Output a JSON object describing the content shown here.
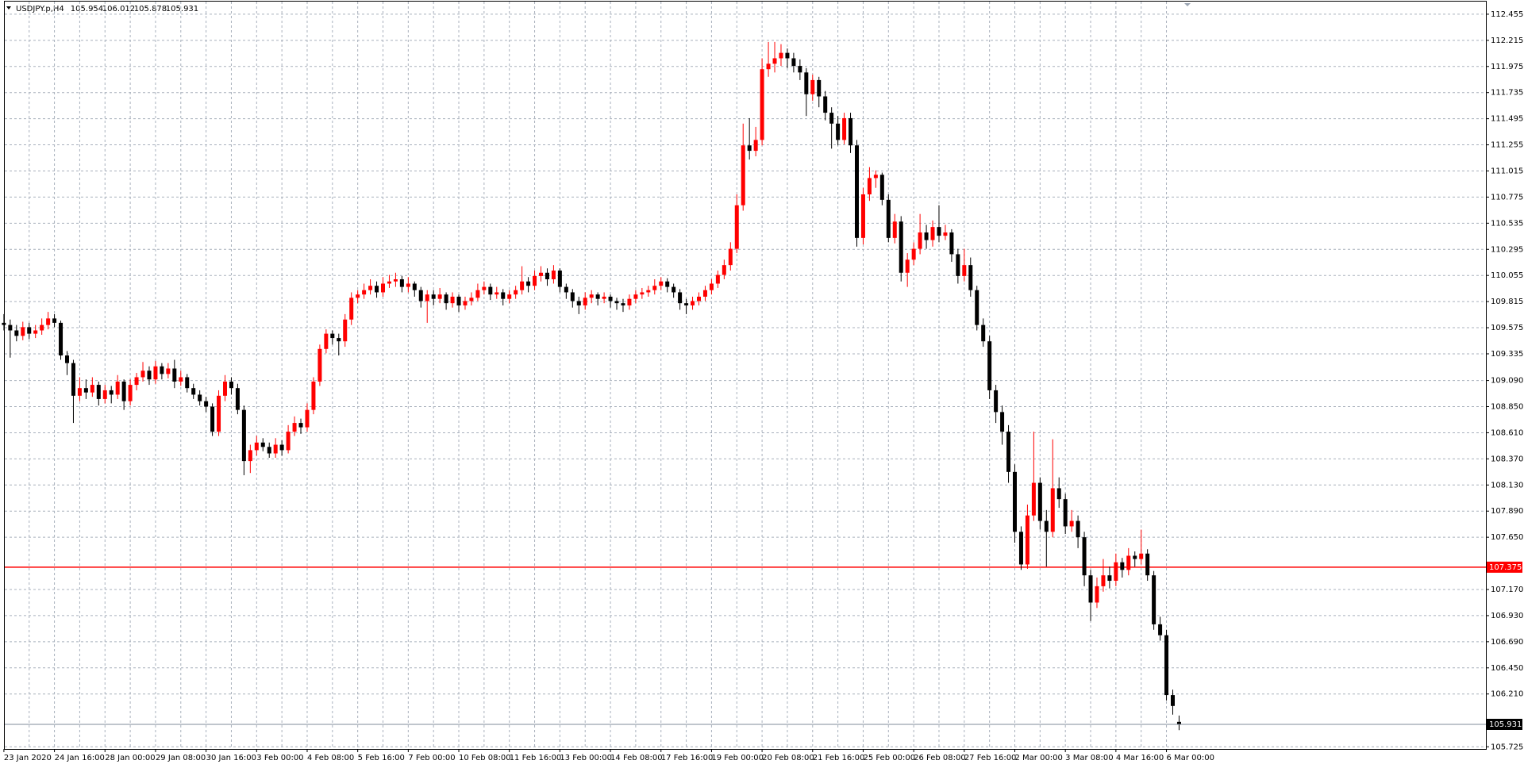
{
  "chart_data": {
    "type": "candlestick",
    "title": "USDJPY.p,H4",
    "up_color": "#ff0000",
    "down_color": "#000000",
    "grid": true,
    "ylim": [
      105.705,
      112.571
    ],
    "yticks": [
      112.455,
      112.215,
      111.975,
      111.735,
      111.495,
      111.255,
      111.015,
      110.775,
      110.535,
      110.295,
      110.055,
      109.815,
      109.575,
      109.335,
      {
        "value": 109.09,
        "label": "109.090"
      },
      {
        "value": 108.85,
        "label": "108.850"
      },
      {
        "value": 108.61,
        "label": "108.610"
      },
      {
        "value": 108.37,
        "label": "108.370"
      },
      {
        "value": 108.13,
        "label": "108.130"
      },
      {
        "value": 107.89,
        "label": "107.890"
      },
      {
        "value": 107.65,
        "label": "107.650"
      },
      {
        "value": 107.17,
        "label": "107.170"
      },
      {
        "value": 106.93,
        "label": "106.930"
      },
      {
        "value": 106.69,
        "label": "106.690"
      },
      {
        "value": 106.45,
        "label": "106.450"
      },
      {
        "value": 106.21,
        "label": "106.210"
      },
      105.725
    ],
    "hlines": [
      {
        "value": 107.375,
        "color": "#ff0000"
      }
    ],
    "categories": [
      "23 Jan 2020",
      null,
      null,
      null,
      null,
      null,
      null,
      null,
      "24 Jan 16:00",
      null,
      null,
      null,
      null,
      null,
      null,
      null,
      "28 Jan 00:00",
      null,
      null,
      null,
      null,
      null,
      null,
      null,
      "29 Jan 08:00",
      null,
      null,
      null,
      null,
      null,
      null,
      null,
      "30 Jan 16:00",
      null,
      null,
      null,
      null,
      null,
      null,
      null,
      "3 Feb 00:00",
      null,
      null,
      null,
      null,
      null,
      null,
      null,
      "4 Feb 08:00",
      null,
      null,
      null,
      null,
      null,
      null,
      null,
      "5 Feb 16:00",
      null,
      null,
      null,
      null,
      null,
      null,
      null,
      "7 Feb 00:00",
      null,
      null,
      null,
      null,
      null,
      null,
      null,
      "10 Feb 08:00",
      null,
      null,
      null,
      null,
      null,
      null,
      null,
      "11 Feb 16:00",
      null,
      null,
      null,
      null,
      null,
      null,
      null,
      "13 Feb 00:00",
      null,
      null,
      null,
      null,
      null,
      null,
      null,
      "14 Feb 08:00",
      null,
      null,
      null,
      null,
      null,
      null,
      null,
      "17 Feb 16:00",
      null,
      null,
      null,
      null,
      null,
      null,
      null,
      "19 Feb 00:00",
      null,
      null,
      null,
      null,
      null,
      null,
      null,
      "20 Feb 08:00",
      null,
      null,
      null,
      null,
      null,
      null,
      null,
      "21 Feb 16:00",
      null,
      null,
      null,
      null,
      null,
      null,
      null,
      "25 Feb 00:00",
      null,
      null,
      null,
      null,
      null,
      null,
      null,
      "26 Feb 08:00",
      null,
      null,
      null,
      null,
      null,
      null,
      null,
      "27 Feb 16:00",
      null,
      null,
      null,
      null,
      null,
      null,
      null,
      "2 Mar 00:00",
      null,
      null,
      null,
      null,
      null,
      null,
      null,
      "3 Mar 08:00",
      null,
      null,
      null,
      null,
      null,
      null,
      null,
      "4 Mar 16:00",
      null,
      null,
      null,
      null,
      null,
      null,
      null,
      "6 Mar 00:00",
      null,
      null
    ],
    "ohlc": [
      [
        109.62,
        109.7,
        109.55,
        109.6
      ],
      [
        109.6,
        109.65,
        109.3,
        109.55
      ],
      [
        109.55,
        109.6,
        109.45,
        109.5
      ],
      [
        109.5,
        109.63,
        109.46,
        109.58
      ],
      [
        109.58,
        109.62,
        109.47,
        109.52
      ],
      [
        109.52,
        109.6,
        109.48,
        109.55
      ],
      [
        109.55,
        109.66,
        109.51,
        109.6
      ],
      [
        109.6,
        109.72,
        109.56,
        109.66
      ],
      [
        109.66,
        109.7,
        109.58,
        109.62
      ],
      [
        109.62,
        109.64,
        109.28,
        109.32
      ],
      [
        109.32,
        109.36,
        109.14,
        109.25
      ],
      [
        109.25,
        109.28,
        108.7,
        108.95
      ],
      [
        108.95,
        109.12,
        108.9,
        109.02
      ],
      [
        109.02,
        109.1,
        108.92,
        108.98
      ],
      [
        108.98,
        109.12,
        108.94,
        109.05
      ],
      [
        109.05,
        109.08,
        108.86,
        108.92
      ],
      [
        108.92,
        109.05,
        108.88,
        109.0
      ],
      [
        109.0,
        109.04,
        108.88,
        108.96
      ],
      [
        108.96,
        109.14,
        108.92,
        109.08
      ],
      [
        109.08,
        109.1,
        108.82,
        108.9
      ],
      [
        108.9,
        109.1,
        108.86,
        109.05
      ],
      [
        109.05,
        109.16,
        109.0,
        109.12
      ],
      [
        109.12,
        109.26,
        109.08,
        109.18
      ],
      [
        109.18,
        109.22,
        109.05,
        109.1
      ],
      [
        109.1,
        109.27,
        109.06,
        109.22
      ],
      [
        109.22,
        109.25,
        109.1,
        109.15
      ],
      [
        109.15,
        109.25,
        109.11,
        109.2
      ],
      [
        109.2,
        109.28,
        109.02,
        109.08
      ],
      [
        109.08,
        109.18,
        109.04,
        109.12
      ],
      [
        109.12,
        109.15,
        108.98,
        109.02
      ],
      [
        109.02,
        109.06,
        108.92,
        108.96
      ],
      [
        108.96,
        109.0,
        108.86,
        108.9
      ],
      [
        108.9,
        108.94,
        108.8,
        108.85
      ],
      [
        108.85,
        108.88,
        108.58,
        108.62
      ],
      [
        108.62,
        109.0,
        108.58,
        108.95
      ],
      [
        108.95,
        109.14,
        108.9,
        109.08
      ],
      [
        109.08,
        109.12,
        108.96,
        109.02
      ],
      [
        109.02,
        109.06,
        108.78,
        108.82
      ],
      [
        108.82,
        108.86,
        108.22,
        108.35
      ],
      [
        108.35,
        108.5,
        108.24,
        108.45
      ],
      [
        108.45,
        108.58,
        108.4,
        108.52
      ],
      [
        108.52,
        108.56,
        108.44,
        108.48
      ],
      [
        108.48,
        108.52,
        108.38,
        108.42
      ],
      [
        108.42,
        108.56,
        108.38,
        108.5
      ],
      [
        108.5,
        108.54,
        108.4,
        108.45
      ],
      [
        108.45,
        108.68,
        108.42,
        108.62
      ],
      [
        108.62,
        108.76,
        108.58,
        108.7
      ],
      [
        108.7,
        108.74,
        108.6,
        108.66
      ],
      [
        108.66,
        108.88,
        108.62,
        108.82
      ],
      [
        108.82,
        109.12,
        108.78,
        109.08
      ],
      [
        109.08,
        109.42,
        109.04,
        109.38
      ],
      [
        109.38,
        109.56,
        109.34,
        109.52
      ],
      [
        109.52,
        109.55,
        109.42,
        109.48
      ],
      [
        109.48,
        109.52,
        109.32,
        109.45
      ],
      [
        109.45,
        109.7,
        109.4,
        109.65
      ],
      [
        109.65,
        109.9,
        109.6,
        109.85
      ],
      [
        109.85,
        109.92,
        109.8,
        109.88
      ],
      [
        109.88,
        109.98,
        109.84,
        109.92
      ],
      [
        109.92,
        110.02,
        109.88,
        109.96
      ],
      [
        109.96,
        110.0,
        109.85,
        109.9
      ],
      [
        109.9,
        110.04,
        109.86,
        109.98
      ],
      [
        109.98,
        110.06,
        109.94,
        110.0
      ],
      [
        110.0,
        110.08,
        109.95,
        110.02
      ],
      [
        110.02,
        110.05,
        109.9,
        109.95
      ],
      [
        109.95,
        110.04,
        109.9,
        109.98
      ],
      [
        109.98,
        110.0,
        109.86,
        109.92
      ],
      [
        109.92,
        109.95,
        109.76,
        109.82
      ],
      [
        109.82,
        109.92,
        109.62,
        109.88
      ],
      [
        109.88,
        109.92,
        109.78,
        109.84
      ],
      [
        109.84,
        109.94,
        109.8,
        109.88
      ],
      [
        109.88,
        109.9,
        109.74,
        109.8
      ],
      [
        109.8,
        109.9,
        109.76,
        109.86
      ],
      [
        109.86,
        109.88,
        109.72,
        109.78
      ],
      [
        109.78,
        109.86,
        109.74,
        109.82
      ],
      [
        109.82,
        109.9,
        109.78,
        109.85
      ],
      [
        109.85,
        109.98,
        109.82,
        109.92
      ],
      [
        109.92,
        110.0,
        109.88,
        109.95
      ],
      [
        109.95,
        109.98,
        109.83,
        109.88
      ],
      [
        109.88,
        109.95,
        109.84,
        109.9
      ],
      [
        109.9,
        109.93,
        109.78,
        109.84
      ],
      [
        109.84,
        109.92,
        109.8,
        109.88
      ],
      [
        109.88,
        109.96,
        109.84,
        109.92
      ],
      [
        109.92,
        110.14,
        109.88,
        110.0
      ],
      [
        110.0,
        110.04,
        109.9,
        109.96
      ],
      [
        109.96,
        110.1,
        109.92,
        110.05
      ],
      [
        110.05,
        110.14,
        110.0,
        110.08
      ],
      [
        110.08,
        110.12,
        109.96,
        110.02
      ],
      [
        110.02,
        110.15,
        109.98,
        110.1
      ],
      [
        110.1,
        110.12,
        109.9,
        109.95
      ],
      [
        109.95,
        109.98,
        109.84,
        109.9
      ],
      [
        109.9,
        109.93,
        109.76,
        109.82
      ],
      [
        109.82,
        109.86,
        109.7,
        109.78
      ],
      [
        109.78,
        109.9,
        109.74,
        109.85
      ],
      [
        109.85,
        109.92,
        109.8,
        109.88
      ],
      [
        109.88,
        109.9,
        109.78,
        109.84
      ],
      [
        109.84,
        109.9,
        109.8,
        109.86
      ],
      [
        109.86,
        109.88,
        109.76,
        109.82
      ],
      [
        109.82,
        109.85,
        109.74,
        109.8
      ],
      [
        109.8,
        109.84,
        109.72,
        109.78
      ],
      [
        109.78,
        109.88,
        109.74,
        109.84
      ],
      [
        109.84,
        109.92,
        109.8,
        109.88
      ],
      [
        109.88,
        109.94,
        109.84,
        109.9
      ],
      [
        109.9,
        109.96,
        109.86,
        109.92
      ],
      [
        109.92,
        110.02,
        109.88,
        109.96
      ],
      [
        109.96,
        110.04,
        109.92,
        110.0
      ],
      [
        110.0,
        110.03,
        109.9,
        109.95
      ],
      [
        109.95,
        109.98,
        109.85,
        109.9
      ],
      [
        109.9,
        109.93,
        109.74,
        109.8
      ],
      [
        109.8,
        109.84,
        109.7,
        109.78
      ],
      [
        109.78,
        109.86,
        109.74,
        109.82
      ],
      [
        109.82,
        109.9,
        109.78,
        109.86
      ],
      [
        109.86,
        109.96,
        109.82,
        109.92
      ],
      [
        109.92,
        110.02,
        109.88,
        109.98
      ],
      [
        109.98,
        110.1,
        109.94,
        110.06
      ],
      [
        110.06,
        110.2,
        110.02,
        110.15
      ],
      [
        110.15,
        110.36,
        110.1,
        110.3
      ],
      [
        110.3,
        110.8,
        110.26,
        110.7
      ],
      [
        110.7,
        111.45,
        110.65,
        111.25
      ],
      [
        111.25,
        111.5,
        111.12,
        111.2
      ],
      [
        111.2,
        111.42,
        111.15,
        111.3
      ],
      [
        111.3,
        112.05,
        111.25,
        111.95
      ],
      [
        111.95,
        112.2,
        111.88,
        112.0
      ],
      [
        112.0,
        112.2,
        111.92,
        112.05
      ],
      [
        112.05,
        112.18,
        111.98,
        112.1
      ],
      [
        112.1,
        112.14,
        111.96,
        112.05
      ],
      [
        112.05,
        112.1,
        111.92,
        111.98
      ],
      [
        111.98,
        112.04,
        111.85,
        111.92
      ],
      [
        111.92,
        111.96,
        111.52,
        111.72
      ],
      [
        111.72,
        111.9,
        111.66,
        111.85
      ],
      [
        111.85,
        111.88,
        111.6,
        111.7
      ],
      [
        111.7,
        111.75,
        111.48,
        111.55
      ],
      [
        111.55,
        111.6,
        111.22,
        111.45
      ],
      [
        111.45,
        111.52,
        111.25,
        111.3
      ],
      [
        111.3,
        111.55,
        111.26,
        111.5
      ],
      [
        111.5,
        111.55,
        111.18,
        111.25
      ],
      [
        111.25,
        111.3,
        110.32,
        110.4
      ],
      [
        110.4,
        110.86,
        110.34,
        110.8
      ],
      [
        110.8,
        111.05,
        110.74,
        110.95
      ],
      [
        110.95,
        111.02,
        110.86,
        110.98
      ],
      [
        110.98,
        111.0,
        110.7,
        110.75
      ],
      [
        110.75,
        110.8,
        110.36,
        110.4
      ],
      [
        110.4,
        110.62,
        110.35,
        110.55
      ],
      [
        110.55,
        110.6,
        110.0,
        110.08
      ],
      [
        110.08,
        110.26,
        109.95,
        110.2
      ],
      [
        110.2,
        110.36,
        110.15,
        110.3
      ],
      [
        110.3,
        110.62,
        110.25,
        110.45
      ],
      [
        110.45,
        110.52,
        110.3,
        110.38
      ],
      [
        110.38,
        110.56,
        110.32,
        110.5
      ],
      [
        110.5,
        110.7,
        110.36,
        110.42
      ],
      [
        110.42,
        110.52,
        110.38,
        110.45
      ],
      [
        110.45,
        110.48,
        110.18,
        110.25
      ],
      [
        110.25,
        110.3,
        109.98,
        110.05
      ],
      [
        110.05,
        110.3,
        110.0,
        110.15
      ],
      [
        110.15,
        110.22,
        109.86,
        109.92
      ],
      [
        109.92,
        109.96,
        109.55,
        109.6
      ],
      [
        109.6,
        109.66,
        109.4,
        109.45
      ],
      [
        109.45,
        109.5,
        108.92,
        109.0
      ],
      [
        109.0,
        109.05,
        108.7,
        108.8
      ],
      [
        108.8,
        108.86,
        108.5,
        108.62
      ],
      [
        108.62,
        108.68,
        108.15,
        108.25
      ],
      [
        108.25,
        108.32,
        107.6,
        107.7
      ],
      [
        107.7,
        107.75,
        107.35,
        107.4
      ],
      [
        107.4,
        107.95,
        107.36,
        107.85
      ],
      [
        107.85,
        108.62,
        107.8,
        108.15
      ],
      [
        108.15,
        108.2,
        107.72,
        107.8
      ],
      [
        107.8,
        107.9,
        107.38,
        107.7
      ],
      [
        107.7,
        108.55,
        107.65,
        108.1
      ],
      [
        108.1,
        108.2,
        107.92,
        108.0
      ],
      [
        108.0,
        108.05,
        107.68,
        107.75
      ],
      [
        107.75,
        107.9,
        107.7,
        107.8
      ],
      [
        107.8,
        107.85,
        107.55,
        107.65
      ],
      [
        107.65,
        107.7,
        107.2,
        107.3
      ],
      [
        107.3,
        107.35,
        106.88,
        107.05
      ],
      [
        107.05,
        107.28,
        107.0,
        107.2
      ],
      [
        107.2,
        107.45,
        107.15,
        107.3
      ],
      [
        107.3,
        107.38,
        107.18,
        107.25
      ],
      [
        107.25,
        107.5,
        107.2,
        107.42
      ],
      [
        107.42,
        107.46,
        107.28,
        107.35
      ],
      [
        107.35,
        107.55,
        107.3,
        107.48
      ],
      [
        107.48,
        107.52,
        107.38,
        107.45
      ],
      [
        107.45,
        107.72,
        107.4,
        107.5
      ],
      [
        107.5,
        107.54,
        107.25,
        107.3
      ],
      [
        107.3,
        107.34,
        106.8,
        106.85
      ],
      [
        106.85,
        106.92,
        106.7,
        106.75
      ],
      [
        106.75,
        106.8,
        106.15,
        106.2
      ],
      [
        106.2,
        106.25,
        106.02,
        106.1
      ],
      [
        105.954,
        106.012,
        105.878,
        105.931
      ]
    ]
  }
}
